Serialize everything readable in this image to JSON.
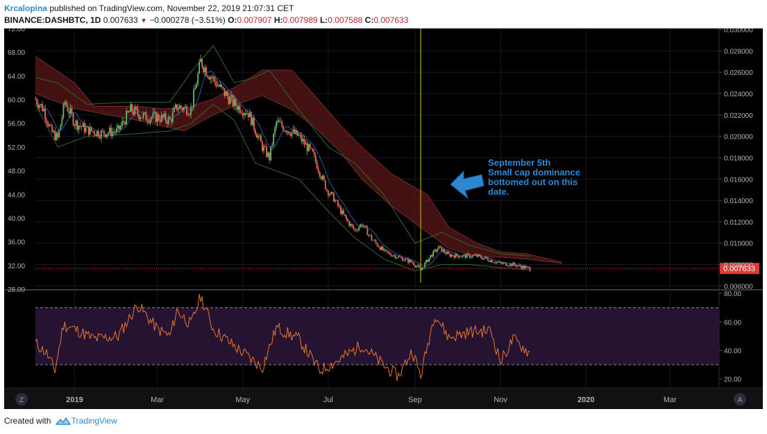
{
  "header": {
    "author": "Krcalopina",
    "published_text": "published on TradingView.com, November 22, 2019 21:07:31 CET",
    "symbol": "BINANCE:DASHBTC, 1D",
    "last": "0.007633",
    "change": "−0.000278 (−3.51%)",
    "o_label": "O:",
    "o_value": "0.007907",
    "h_label": "H:",
    "h_value": "0.007989",
    "l_label": "L:",
    "l_value": "0.007588",
    "c_label": "C:",
    "c_value": "0.007633"
  },
  "footer": {
    "created_with": "Created with",
    "brand": "TradingView"
  },
  "colors": {
    "background": "#000000",
    "up": "#66bb6a",
    "down": "#ef6c5a",
    "cloud_bear": "#5a1717",
    "cloud_bull": "#1b3a1b",
    "bb_line": "#2f6a2f",
    "rsi": "#e8782c",
    "rsi_band": "#2a1436",
    "highlight_line": "#b5a824",
    "price_label": "#e53935",
    "annotation": "#2e88d0",
    "axis_text": "#b2b5be"
  },
  "icons": {
    "arrow": "left-arrow-icon",
    "logo": "tradingview-logo-icon"
  },
  "chart_data": {
    "type": "candlestick",
    "symbol": "BINANCE:DASHBTC",
    "interval": "1D",
    "y_left_ticks": [
      "28.00",
      "32.00",
      "36.00",
      "40.00",
      "44.00",
      "48.00",
      "52.00",
      "56.00",
      "60.00",
      "64.00",
      "68.00",
      "72.00"
    ],
    "y_right_ticks": [
      "0.006000",
      "0.008000",
      "0.010000",
      "0.012000",
      "0.014000",
      "0.016000",
      "0.018000",
      "0.020000",
      "0.022000",
      "0.024000",
      "0.026000",
      "0.028000",
      "0.030000"
    ],
    "y_right_range": [
      0.0057,
      0.0301
    ],
    "last_price_label": "0.007633",
    "x_ticks": [
      "2019",
      "Mar",
      "May",
      "Jul",
      "Sep",
      "Nov",
      "2020",
      "Mar"
    ],
    "x_range": [
      "2018-12-04",
      "2020-04-05"
    ],
    "price_path": [
      [
        "2018-12-04",
        0.0235
      ],
      [
        "2018-12-10",
        0.0225
      ],
      [
        "2018-12-15",
        0.0205
      ],
      [
        "2018-12-20",
        0.0198
      ],
      [
        "2018-12-25",
        0.0232
      ],
      [
        "2019-01-01",
        0.0213
      ],
      [
        "2019-01-10",
        0.0206
      ],
      [
        "2019-01-20",
        0.0203
      ],
      [
        "2019-02-01",
        0.0205
      ],
      [
        "2019-02-10",
        0.0225
      ],
      [
        "2019-02-20",
        0.0218
      ],
      [
        "2019-03-01",
        0.0218
      ],
      [
        "2019-03-10",
        0.0215
      ],
      [
        "2019-03-15",
        0.0228
      ],
      [
        "2019-03-25",
        0.0225
      ],
      [
        "2019-04-01",
        0.027
      ],
      [
        "2019-04-06",
        0.026
      ],
      [
        "2019-04-15",
        0.0245
      ],
      [
        "2019-04-25",
        0.023
      ],
      [
        "2019-05-05",
        0.0222
      ],
      [
        "2019-05-15",
        0.019
      ],
      [
        "2019-05-20",
        0.018
      ],
      [
        "2019-05-25",
        0.0213
      ],
      [
        "2019-06-01",
        0.0207
      ],
      [
        "2019-06-10",
        0.02
      ],
      [
        "2019-06-20",
        0.0183
      ],
      [
        "2019-06-30",
        0.015
      ],
      [
        "2019-07-05",
        0.0142
      ],
      [
        "2019-07-10",
        0.013
      ],
      [
        "2019-07-15",
        0.012
      ],
      [
        "2019-07-20",
        0.0112
      ],
      [
        "2019-07-25",
        0.0118
      ],
      [
        "2019-08-01",
        0.0104
      ],
      [
        "2019-08-10",
        0.0092
      ],
      [
        "2019-08-20",
        0.0087
      ],
      [
        "2019-08-30",
        0.0082
      ],
      [
        "2019-09-05",
        0.0075
      ],
      [
        "2019-09-12",
        0.0088
      ],
      [
        "2019-09-18",
        0.0096
      ],
      [
        "2019-09-25",
        0.0089
      ],
      [
        "2019-10-05",
        0.0088
      ],
      [
        "2019-10-15",
        0.0088
      ],
      [
        "2019-10-25",
        0.0084
      ],
      [
        "2019-11-01",
        0.0081
      ],
      [
        "2019-11-10",
        0.008
      ],
      [
        "2019-11-22",
        0.0076
      ]
    ],
    "cloud_upper": [
      [
        "2018-12-04",
        0.0275
      ],
      [
        "2019-01-01",
        0.025
      ],
      [
        "2019-01-15",
        0.0228
      ],
      [
        "2019-02-15",
        0.0228
      ],
      [
        "2019-03-01",
        0.0226
      ],
      [
        "2019-03-20",
        0.0226
      ],
      [
        "2019-04-10",
        0.0235
      ],
      [
        "2019-05-01",
        0.025
      ],
      [
        "2019-05-15",
        0.0262
      ],
      [
        "2019-06-05",
        0.0262
      ],
      [
        "2019-06-20",
        0.024
      ],
      [
        "2019-07-10",
        0.021
      ],
      [
        "2019-07-25",
        0.019
      ],
      [
        "2019-08-15",
        0.0165
      ],
      [
        "2019-09-10",
        0.0145
      ],
      [
        "2019-09-25",
        0.0115
      ],
      [
        "2019-10-15",
        0.01
      ],
      [
        "2019-11-01",
        0.0092
      ],
      [
        "2019-11-20",
        0.009
      ],
      [
        "2019-12-15",
        0.0082
      ]
    ],
    "cloud_lower": [
      [
        "2018-12-04",
        0.024
      ],
      [
        "2019-01-01",
        0.0226
      ],
      [
        "2019-02-15",
        0.0215
      ],
      [
        "2019-03-20",
        0.0205
      ],
      [
        "2019-04-10",
        0.022
      ],
      [
        "2019-05-01",
        0.0232
      ],
      [
        "2019-05-15",
        0.0238
      ],
      [
        "2019-06-05",
        0.0225
      ],
      [
        "2019-06-20",
        0.021
      ],
      [
        "2019-07-10",
        0.0185
      ],
      [
        "2019-07-25",
        0.016
      ],
      [
        "2019-08-15",
        0.0135
      ],
      [
        "2019-09-10",
        0.011
      ],
      [
        "2019-09-25",
        0.0095
      ],
      [
        "2019-10-15",
        0.0088
      ],
      [
        "2019-11-01",
        0.0087
      ],
      [
        "2019-11-20",
        0.0085
      ],
      [
        "2019-12-15",
        0.0081
      ]
    ],
    "bb_upper": [
      [
        "2018-12-04",
        0.0255
      ],
      [
        "2018-12-20",
        0.025
      ],
      [
        "2019-01-10",
        0.023
      ],
      [
        "2019-02-10",
        0.0232
      ],
      [
        "2019-03-10",
        0.0232
      ],
      [
        "2019-03-25",
        0.026
      ],
      [
        "2019-04-10",
        0.0285
      ],
      [
        "2019-04-25",
        0.025
      ],
      [
        "2019-05-10",
        0.0255
      ],
      [
        "2019-05-20",
        0.0262
      ],
      [
        "2019-06-10",
        0.0225
      ],
      [
        "2019-07-01",
        0.019
      ],
      [
        "2019-07-20",
        0.0175
      ],
      [
        "2019-08-10",
        0.0145
      ],
      [
        "2019-09-01",
        0.01
      ],
      [
        "2019-09-20",
        0.011
      ],
      [
        "2019-10-10",
        0.0098
      ],
      [
        "2019-11-01",
        0.009
      ],
      [
        "2019-11-22",
        0.0088
      ]
    ],
    "bb_lower": [
      [
        "2018-12-04",
        0.023
      ],
      [
        "2018-12-20",
        0.019
      ],
      [
        "2019-01-10",
        0.02
      ],
      [
        "2019-02-10",
        0.0202
      ],
      [
        "2019-03-10",
        0.0205
      ],
      [
        "2019-03-25",
        0.0212
      ],
      [
        "2019-04-10",
        0.023
      ],
      [
        "2019-04-25",
        0.0215
      ],
      [
        "2019-05-10",
        0.0175
      ],
      [
        "2019-05-20",
        0.017
      ],
      [
        "2019-06-10",
        0.016
      ],
      [
        "2019-07-01",
        0.013
      ],
      [
        "2019-07-20",
        0.0105
      ],
      [
        "2019-08-10",
        0.0085
      ],
      [
        "2019-09-01",
        0.0074
      ],
      [
        "2019-09-20",
        0.008
      ],
      [
        "2019-10-10",
        0.008
      ],
      [
        "2019-11-01",
        0.0077
      ],
      [
        "2019-11-22",
        0.0075
      ]
    ],
    "annotation": {
      "lines": [
        "September 5th",
        "Small cap dominance",
        "bottomed out on this",
        "date."
      ],
      "marker_date": "2019-09-05"
    },
    "rsi": {
      "ticks": [
        "20.00",
        "40.00",
        "60.00",
        "80.00"
      ],
      "range": [
        14,
        82
      ],
      "band": [
        30,
        70
      ],
      "series": [
        [
          "2018-12-04",
          45
        ],
        [
          "2018-12-12",
          38
        ],
        [
          "2018-12-18",
          26
        ],
        [
          "2018-12-24",
          58
        ],
        [
          "2019-01-01",
          55
        ],
        [
          "2019-01-15",
          48
        ],
        [
          "2019-02-01",
          50
        ],
        [
          "2019-02-15",
          72
        ],
        [
          "2019-03-01",
          55
        ],
        [
          "2019-03-10",
          50
        ],
        [
          "2019-03-15",
          68
        ],
        [
          "2019-03-25",
          58
        ],
        [
          "2019-04-01",
          78
        ],
        [
          "2019-04-10",
          55
        ],
        [
          "2019-04-25",
          43
        ],
        [
          "2019-05-15",
          28
        ],
        [
          "2019-05-25",
          56
        ],
        [
          "2019-06-10",
          48
        ],
        [
          "2019-06-25",
          26
        ],
        [
          "2019-07-10",
          34
        ],
        [
          "2019-07-25",
          44
        ],
        [
          "2019-08-10",
          29
        ],
        [
          "2019-08-20",
          22
        ],
        [
          "2019-08-30",
          40
        ],
        [
          "2019-09-05",
          22
        ],
        [
          "2019-09-15",
          66
        ],
        [
          "2019-09-25",
          49
        ],
        [
          "2019-10-10",
          53
        ],
        [
          "2019-10-25",
          54
        ],
        [
          "2019-11-01",
          32
        ],
        [
          "2019-11-10",
          48
        ],
        [
          "2019-11-22",
          38
        ]
      ]
    }
  },
  "controls": {
    "left_badge": "Z",
    "right_badge": "A"
  }
}
